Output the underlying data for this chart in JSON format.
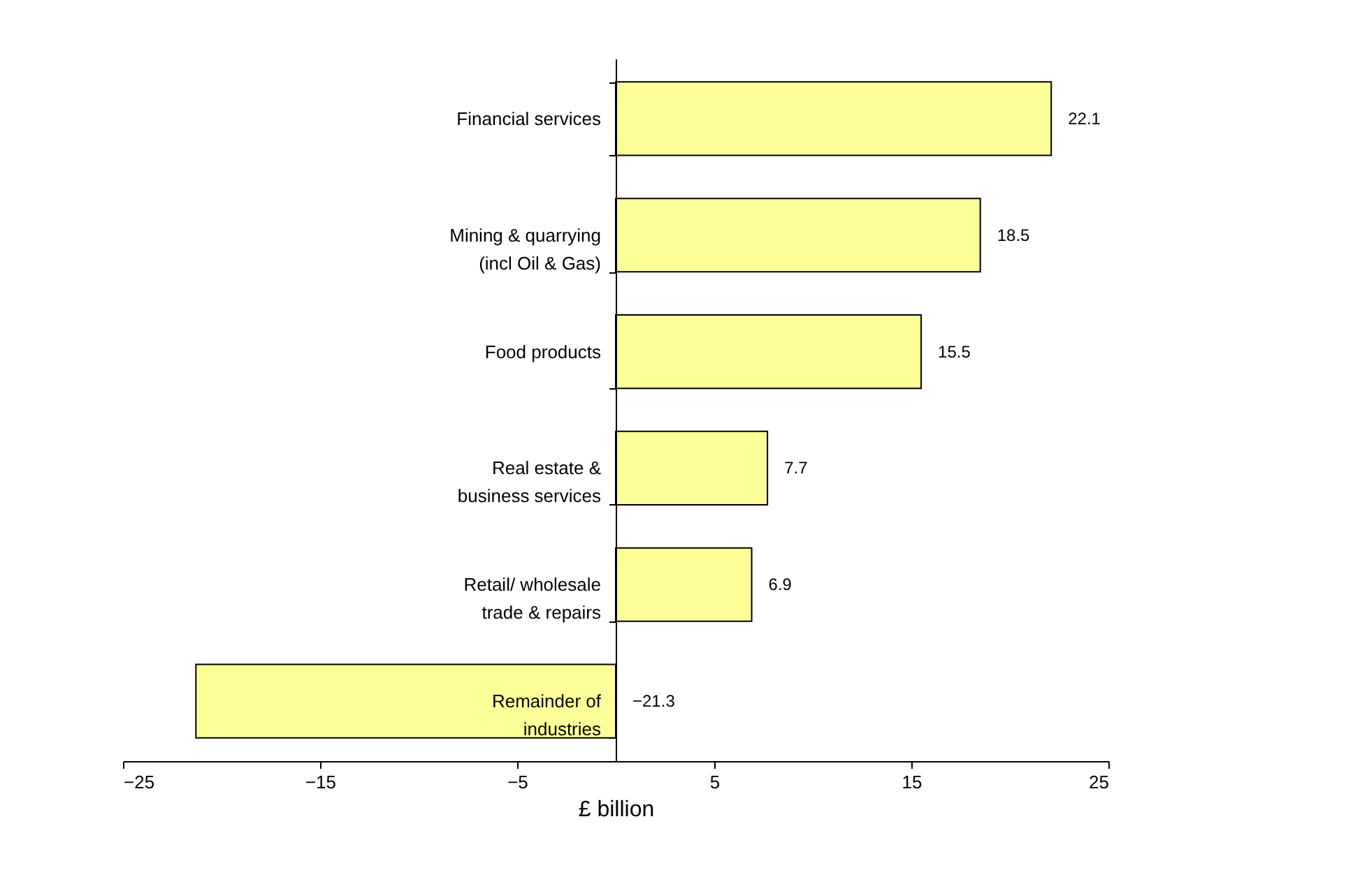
{
  "chart_data": {
    "type": "bar",
    "orientation": "horizontal",
    "xlabel": "£ billion",
    "categories": [
      "Financial services",
      "Mining & quarrying\n(incl Oil & Gas)",
      "Food products",
      "Real estate &\nbusiness services",
      "Retail/ wholesale\ntrade & repairs",
      "Remainder of\nindustries"
    ],
    "values": [
      22.1,
      18.5,
      15.5,
      7.7,
      6.9,
      -21.3
    ],
    "color": "#ffff99",
    "xlim": [
      -25,
      25
    ],
    "xticks": [
      -25,
      -15,
      -5,
      5,
      15,
      25
    ],
    "grid": false,
    "data_labels": true
  }
}
